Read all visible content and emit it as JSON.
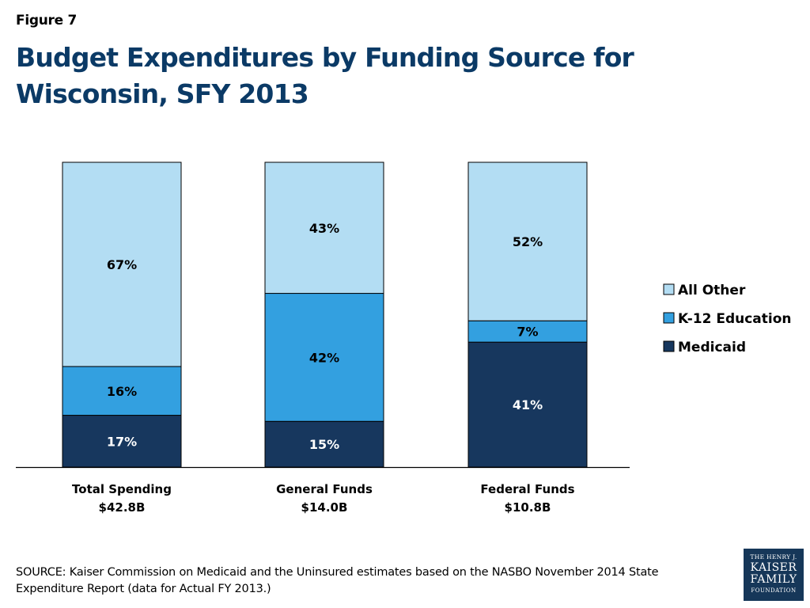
{
  "figure_label": "Figure 7",
  "title": "Budget Expenditures by Funding Source for Wisconsin, SFY 2013",
  "source": "SOURCE: Kaiser Commission on Medicaid and the Uninsured estimates based on the NASBO November 2014 State Expenditure Report (data for Actual FY 2013.)",
  "logo": {
    "line1": "THE HENRY J.",
    "line2": "KAISER",
    "line3": "FAMILY",
    "line4": "FOUNDATION"
  },
  "chart_data": {
    "type": "bar",
    "stacked": true,
    "percent_stacked": true,
    "categories": [
      "Total Spending\n$42.8B",
      "General Funds\n$14.0B",
      "Federal Funds\n$10.8B"
    ],
    "series": [
      {
        "name": "Medicaid",
        "values": [
          17,
          15,
          41
        ],
        "labels": [
          "17%",
          "15%",
          "41%"
        ],
        "color": "#17375e"
      },
      {
        "name": "K-12 Education",
        "values": [
          16,
          42,
          7
        ],
        "labels": [
          "16%",
          "42%",
          "7%"
        ],
        "color": "#33a0e0"
      },
      {
        "name": "All Other",
        "values": [
          67,
          43,
          52
        ],
        "labels": [
          "67%",
          "43%",
          "52%"
        ],
        "color": "#b3ddf3"
      }
    ],
    "legend_order": [
      "All Other",
      "K-12 Education",
      "Medicaid"
    ],
    "legend_position": "right",
    "ylim": [
      0,
      100
    ],
    "grid": false,
    "title": "",
    "xlabel": "",
    "ylabel": ""
  }
}
